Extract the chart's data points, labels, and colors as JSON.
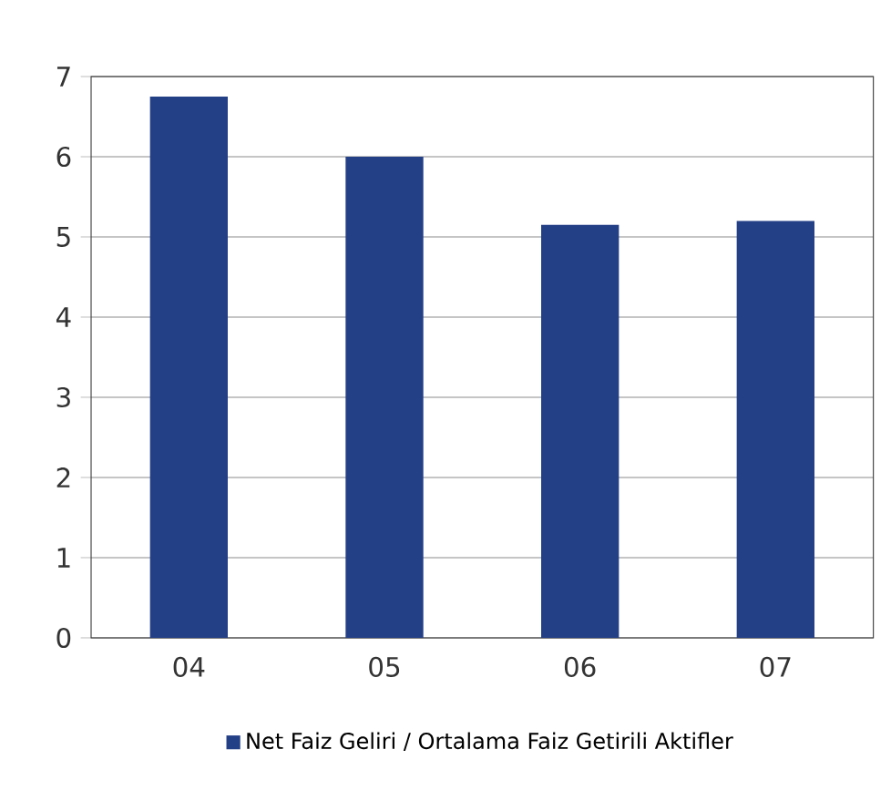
{
  "chart_data": {
    "type": "bar",
    "categories": [
      "04",
      "05",
      "06",
      "07"
    ],
    "series": [
      {
        "name": "Net Faiz Geliri / Ortalama Faiz Getirili Aktifler",
        "color": "#233f86",
        "values": [
          6.75,
          6.0,
          5.15,
          5.2
        ]
      }
    ],
    "ylim": [
      0,
      7
    ],
    "yticks": [
      0,
      1,
      2,
      3,
      4,
      5,
      6,
      7
    ],
    "grid": "y",
    "legend": "bottom"
  }
}
